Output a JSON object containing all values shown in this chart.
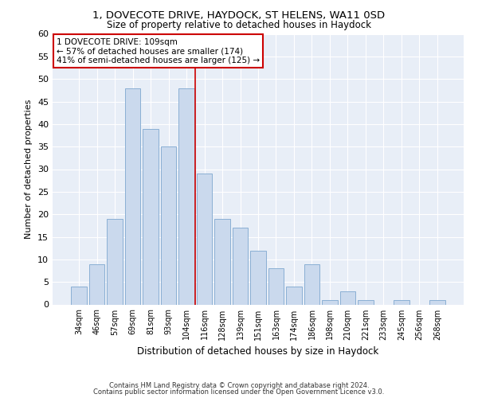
{
  "title1": "1, DOVECOTE DRIVE, HAYDOCK, ST HELENS, WA11 0SD",
  "title2": "Size of property relative to detached houses in Haydock",
  "xlabel": "Distribution of detached houses by size in Haydock",
  "ylabel": "Number of detached properties",
  "categories": [
    "34sqm",
    "46sqm",
    "57sqm",
    "69sqm",
    "81sqm",
    "93sqm",
    "104sqm",
    "116sqm",
    "128sqm",
    "139sqm",
    "151sqm",
    "163sqm",
    "174sqm",
    "186sqm",
    "198sqm",
    "210sqm",
    "221sqm",
    "233sqm",
    "245sqm",
    "256sqm",
    "268sqm"
  ],
  "values": [
    4,
    9,
    19,
    48,
    39,
    35,
    48,
    29,
    19,
    17,
    12,
    8,
    4,
    9,
    1,
    3,
    1,
    0,
    1,
    0,
    1
  ],
  "bar_color": "#cad9ed",
  "bar_edgecolor": "#8aafd4",
  "vline_color": "#cc0000",
  "annotation_text": "1 DOVECOTE DRIVE: 109sqm\n← 57% of detached houses are smaller (174)\n41% of semi-detached houses are larger (125) →",
  "annotation_box_color": "#ffffff",
  "annotation_box_edgecolor": "#cc0000",
  "ylim": [
    0,
    60
  ],
  "yticks": [
    0,
    5,
    10,
    15,
    20,
    25,
    30,
    35,
    40,
    45,
    50,
    55,
    60
  ],
  "bg_color": "#e8eef7",
  "footer1": "Contains HM Land Registry data © Crown copyright and database right 2024.",
  "footer2": "Contains public sector information licensed under the Open Government Licence v3.0."
}
